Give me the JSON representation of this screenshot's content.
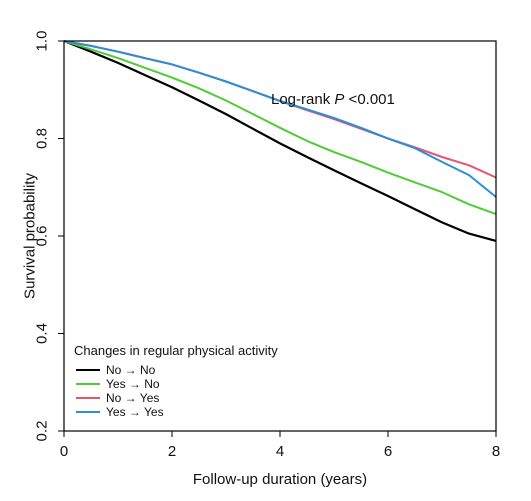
{
  "chart_data": {
    "type": "line",
    "xlabel": "Follow-up duration (years)",
    "ylabel": "Survival probability",
    "xlim": [
      0,
      8
    ],
    "ylim": [
      0.2,
      1.0
    ],
    "xticks": [
      "0",
      "2",
      "4",
      "6",
      "8"
    ],
    "yticks": [
      "0.2",
      "0.4",
      "0.6",
      "0.8",
      "1.0"
    ],
    "annotation": {
      "prefix": "Log-rank ",
      "italic": "P",
      "suffix": " <0.001"
    },
    "legend": {
      "title": "Changes in regular physical activity",
      "position": "bottom-left"
    },
    "grid": false,
    "series": [
      {
        "name": "No → No",
        "color": "#000000",
        "points": [
          [
            0,
            1.0
          ],
          [
            0.5,
            0.978
          ],
          [
            1,
            0.955
          ],
          [
            1.5,
            0.93
          ],
          [
            2,
            0.905
          ],
          [
            2.5,
            0.878
          ],
          [
            3,
            0.85
          ],
          [
            3.5,
            0.82
          ],
          [
            4,
            0.79
          ],
          [
            4.5,
            0.762
          ],
          [
            5,
            0.735
          ],
          [
            5.5,
            0.708
          ],
          [
            6,
            0.682
          ],
          [
            6.5,
            0.655
          ],
          [
            7,
            0.628
          ],
          [
            7.5,
            0.605
          ],
          [
            8,
            0.59
          ]
        ]
      },
      {
        "name": "Yes →  No",
        "color": "#4dcc35",
        "points": [
          [
            0,
            1.0
          ],
          [
            0.5,
            0.983
          ],
          [
            1,
            0.965
          ],
          [
            1.5,
            0.945
          ],
          [
            2,
            0.925
          ],
          [
            2.5,
            0.903
          ],
          [
            3,
            0.878
          ],
          [
            3.5,
            0.85
          ],
          [
            4,
            0.822
          ],
          [
            4.5,
            0.795
          ],
          [
            5,
            0.772
          ],
          [
            5.5,
            0.752
          ],
          [
            6,
            0.73
          ],
          [
            6.5,
            0.71
          ],
          [
            7,
            0.69
          ],
          [
            7.5,
            0.665
          ],
          [
            8,
            0.645
          ]
        ]
      },
      {
        "name": "No → Yes",
        "color": "#e4556e",
        "points": [
          [
            0,
            1.0
          ],
          [
            0.5,
            0.99
          ],
          [
            1,
            0.978
          ],
          [
            1.5,
            0.965
          ],
          [
            2,
            0.952
          ],
          [
            2.5,
            0.935
          ],
          [
            3,
            0.917
          ],
          [
            3.5,
            0.897
          ],
          [
            4,
            0.877
          ],
          [
            4.5,
            0.858
          ],
          [
            5,
            0.84
          ],
          [
            5.5,
            0.82
          ],
          [
            6,
            0.8
          ],
          [
            6.5,
            0.782
          ],
          [
            7,
            0.762
          ],
          [
            7.5,
            0.745
          ],
          [
            8,
            0.72
          ]
        ]
      },
      {
        "name": "Yes → Yes",
        "color": "#2c8fd6",
        "points": [
          [
            0,
            1.0
          ],
          [
            0.5,
            0.99
          ],
          [
            1,
            0.978
          ],
          [
            1.5,
            0.965
          ],
          [
            2,
            0.952
          ],
          [
            2.5,
            0.935
          ],
          [
            3,
            0.917
          ],
          [
            3.5,
            0.897
          ],
          [
            4,
            0.877
          ],
          [
            4.5,
            0.86
          ],
          [
            5,
            0.842
          ],
          [
            5.5,
            0.822
          ],
          [
            6,
            0.8
          ],
          [
            6.5,
            0.78
          ],
          [
            7,
            0.752
          ],
          [
            7.5,
            0.725
          ],
          [
            8,
            0.68
          ]
        ]
      }
    ]
  }
}
